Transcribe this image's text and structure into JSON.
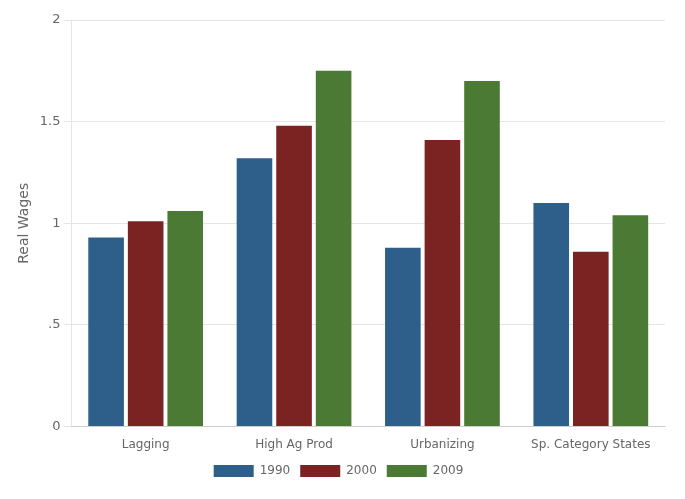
{
  "chart_data": {
    "type": "bar",
    "categories": [
      "Lagging",
      "High Ag Prod",
      "Urbanizing",
      "Sp. Category States"
    ],
    "series": [
      {
        "name": "1990",
        "color": "#2e5f8a",
        "values": [
          0.93,
          1.32,
          0.88,
          1.1
        ]
      },
      {
        "name": "2000",
        "color": "#7b2323",
        "values": [
          1.01,
          1.48,
          1.41,
          0.86
        ]
      },
      {
        "name": "2009",
        "color": "#4a7a34",
        "values": [
          1.06,
          1.75,
          1.7,
          1.04
        ]
      }
    ],
    "ylabel": "Real Wages",
    "ylim": [
      0,
      2.0
    ],
    "yticks": [
      0,
      {
        "value": 0.5,
        "label": ".5"
      },
      1,
      1.5,
      2
    ],
    "grid": true,
    "legend": "bottom"
  }
}
